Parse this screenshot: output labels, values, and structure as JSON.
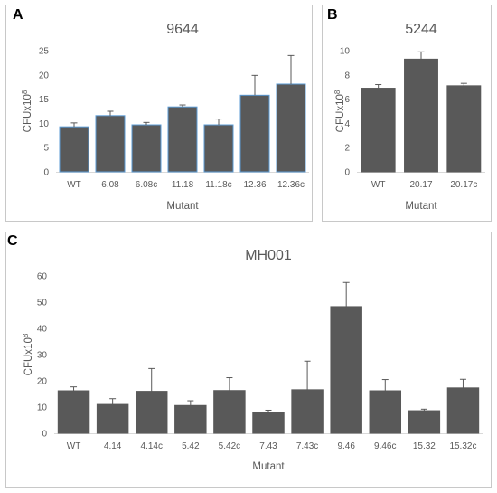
{
  "panels": [
    {
      "letter": "A",
      "chart_data": {
        "type": "bar",
        "title": "9644",
        "xlabel": "Mutant",
        "ylabel": "CFUx10",
        "ylabel_sup": "8",
        "categories": [
          "WT",
          "6.08",
          "6.08c",
          "11.18",
          "11.18c",
          "12.36",
          "12.36c"
        ],
        "values": [
          9.3,
          11.6,
          9.7,
          13.4,
          9.7,
          15.8,
          18.1
        ],
        "errors": [
          0.8,
          0.9,
          0.5,
          0.4,
          1.2,
          4.1,
          5.9
        ],
        "ylim": [
          0,
          25
        ],
        "yticks": [
          0,
          5,
          10,
          15,
          20,
          25
        ],
        "bar_color": "#595959",
        "bar_edge_color": "#5b9bd5",
        "grid": false
      }
    },
    {
      "letter": "B",
      "chart_data": {
        "type": "bar",
        "title": "5244",
        "xlabel": "Mutant",
        "ylabel": "CFUx10",
        "ylabel_sup": "8",
        "categories": [
          "WT",
          "20.17",
          "20.17c"
        ],
        "values": [
          6.9,
          9.3,
          7.1
        ],
        "errors": [
          0.3,
          0.6,
          0.2
        ],
        "ylim": [
          0,
          10
        ],
        "yticks": [
          0,
          2,
          4,
          6,
          8,
          10
        ],
        "bar_color": "#595959",
        "bar_edge_color": "#595959",
        "grid": false
      }
    },
    {
      "letter": "C",
      "chart_data": {
        "type": "bar",
        "title": "MH001",
        "xlabel": "Mutant",
        "ylabel": "CFUx10",
        "ylabel_sup": "8",
        "categories": [
          "WT",
          "4.14",
          "4.14c",
          "5.42",
          "5.42c",
          "7.43",
          "7.43c",
          "9.46",
          "9.46c",
          "15.32",
          "15.32c"
        ],
        "values": [
          16.2,
          11.0,
          16.0,
          10.6,
          16.3,
          8.1,
          16.6,
          48.3,
          16.2,
          8.6,
          17.3
        ],
        "errors": [
          1.5,
          2.2,
          8.7,
          1.8,
          4.9,
          0.7,
          10.9,
          9.2,
          4.3,
          0.6,
          3.3
        ],
        "ylim": [
          0,
          60
        ],
        "yticks": [
          0,
          10,
          20,
          30,
          40,
          50,
          60
        ],
        "bar_color": "#595959",
        "bar_edge_color": "#595959",
        "grid": false
      }
    }
  ]
}
